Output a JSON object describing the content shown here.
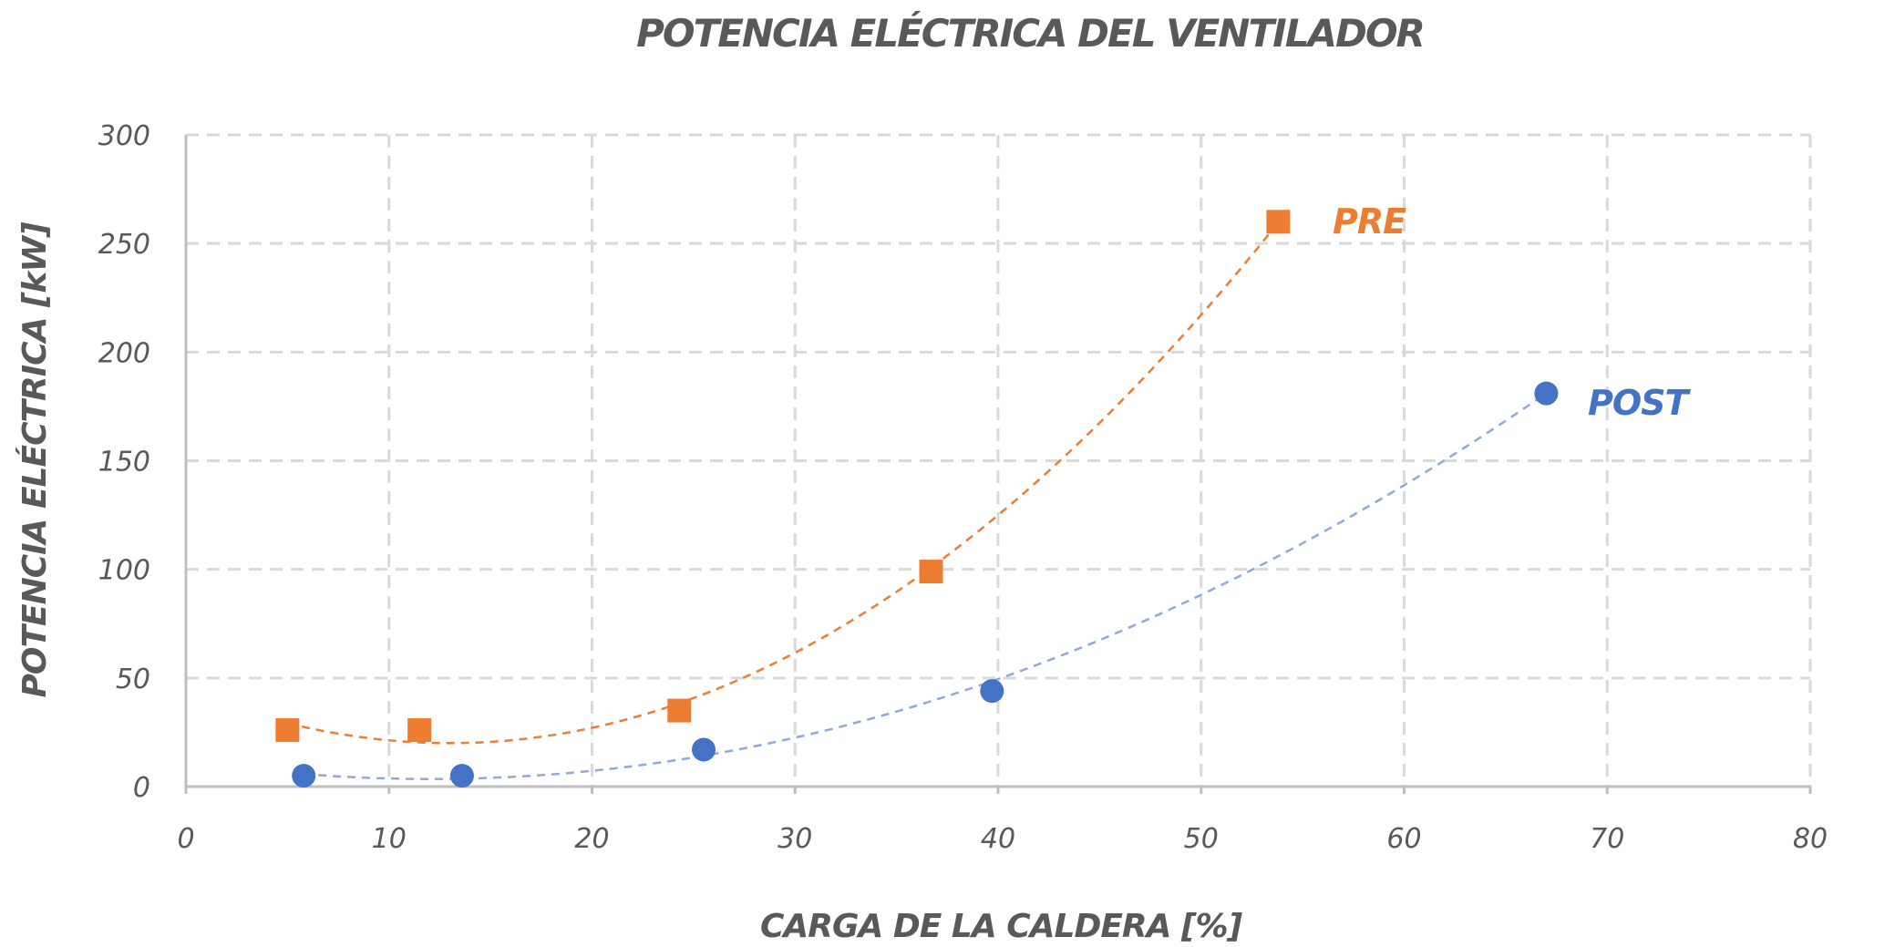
{
  "chart_data": {
    "type": "scatter",
    "title": "POTENCIA ELÉCTRICA DEL VENTILADOR",
    "xlabel": "CARGA DE LA CALDERA [%]",
    "ylabel": "POTENCIA ELÉCTRICA [kW]",
    "xlim": [
      0,
      80
    ],
    "ylim": [
      0,
      300
    ],
    "x_ticks": [
      0,
      10,
      20,
      30,
      40,
      50,
      60,
      70,
      80
    ],
    "y_ticks": [
      0,
      50,
      100,
      150,
      200,
      250,
      300
    ],
    "grid": true,
    "legend_position": "inline labels at series ends",
    "series": [
      {
        "name": "PRE",
        "color": "#ED7D31",
        "marker": "square",
        "x": [
          5.0,
          11.5,
          24.3,
          36.7,
          53.8
        ],
        "y": [
          26,
          26,
          35,
          99,
          260
        ],
        "trendline": {
          "type": "polynomial-2",
          "dashed": true,
          "vertex_x": 13,
          "vertex_y": 20,
          "a": 0.144
        }
      },
      {
        "name": "POST",
        "color": "#4472C4",
        "marker": "circle",
        "x": [
          5.8,
          13.6,
          25.5,
          39.7,
          67.0
        ],
        "y": [
          5,
          5,
          17,
          44,
          181
        ],
        "trendline": {
          "type": "polynomial-2",
          "dashed": true,
          "vertex_x": 12,
          "vertex_y": 3.5,
          "a": 0.0587
        }
      }
    ]
  },
  "labels": {
    "pre": "PRE",
    "post": "POST"
  }
}
